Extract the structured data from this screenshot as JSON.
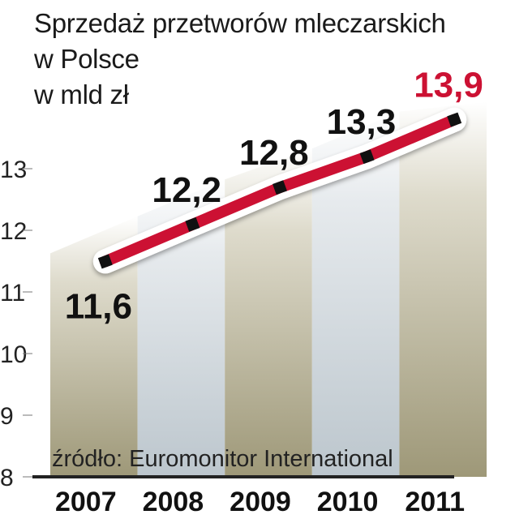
{
  "chart_data": {
    "type": "line",
    "title": [
      "Sprzedaż przetworów mleczarskich",
      "w Polsce",
      "w mld zł"
    ],
    "categories": [
      "2007",
      "2008",
      "2009",
      "2010",
      "2011"
    ],
    "series": [
      {
        "values": [
          11.6,
          12.2,
          12.8,
          13.3,
          13.9
        ]
      }
    ],
    "value_labels": [
      "11,6",
      "12,2",
      "12,8",
      "13,3",
      "13,9"
    ],
    "yticks": [
      "8",
      "9",
      "10",
      "11",
      "12",
      "13"
    ],
    "ylim": [
      8,
      14
    ],
    "source": "źródło: Euromonitor International",
    "colors": {
      "line": "#cc1133",
      "highlight_label": "#cc1133",
      "label": "#111111",
      "band_dark": "#a8a386",
      "band_light": "#c4cdd3"
    }
  }
}
